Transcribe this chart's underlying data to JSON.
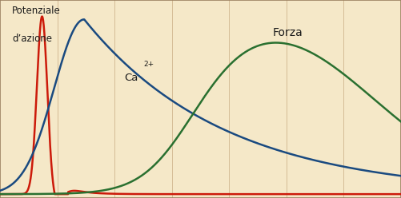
{
  "background_color": "#f5e8c8",
  "grid_color": "#d4bc96",
  "border_color": "#9b8060",
  "label_potenziale_line1": "Potenziale",
  "label_potenziale_line2": "d’azione",
  "label_ca": "Ca",
  "label_ca_sup": "2+",
  "label_forza": "Forza",
  "color_red": "#cc1a0a",
  "color_blue": "#1a4a80",
  "color_green": "#2a7030",
  "xlim": [
    0,
    10
  ],
  "ylim": [
    -0.02,
    1.0
  ],
  "vline_positions": [
    1.43,
    2.86,
    4.29,
    5.71,
    7.14,
    8.57
  ],
  "lw": 1.8
}
